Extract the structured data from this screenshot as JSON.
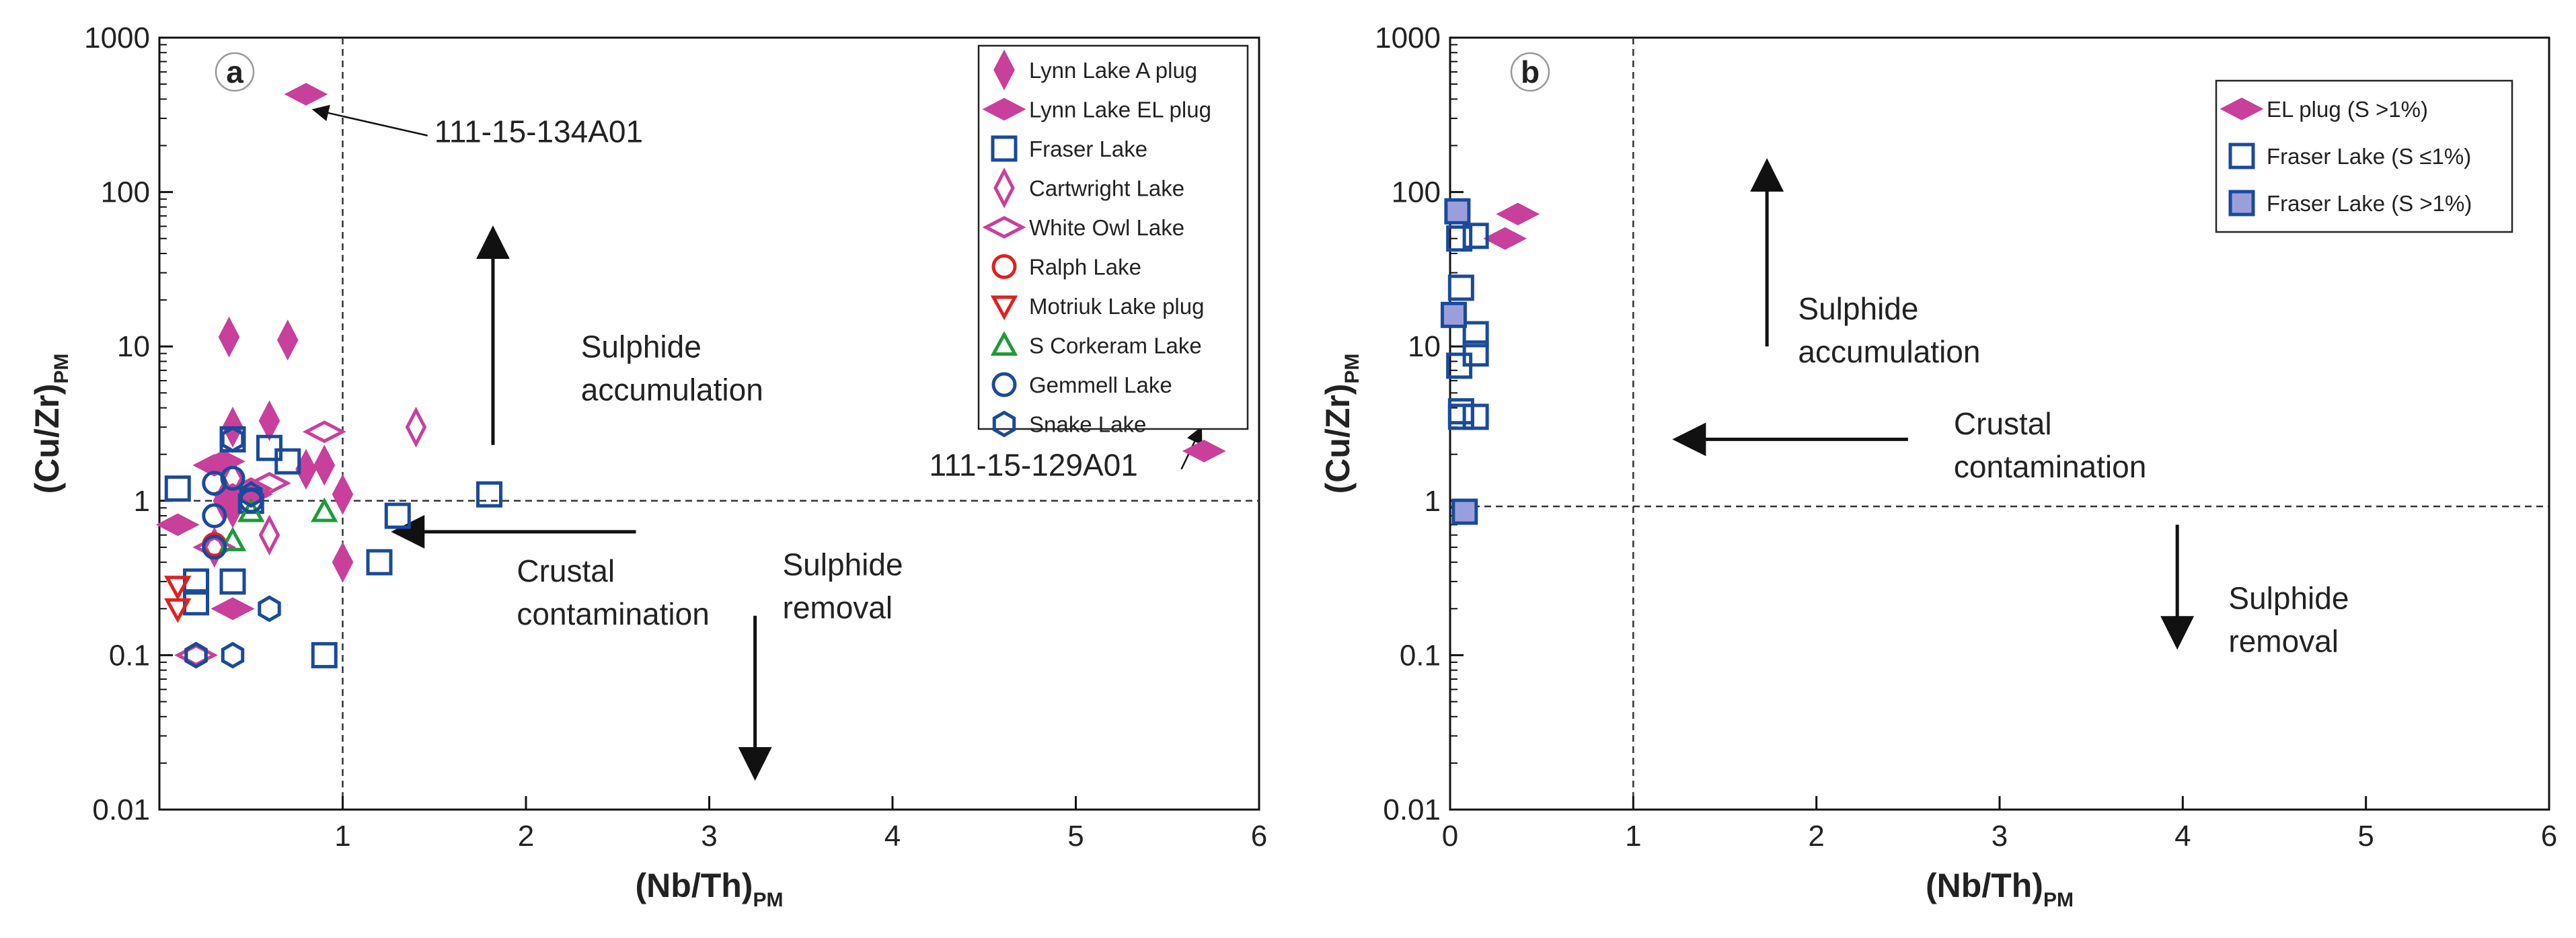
{
  "chart_data": [
    {
      "type": "scatter",
      "panel_label": "a",
      "xlabel": "(Nb/Th)",
      "xlabel_sub": "PM",
      "ylabel": "(Cu/Zr)",
      "ylabel_sub": "PM",
      "xlim": [
        0,
        6
      ],
      "ylim": [
        0.01,
        1000
      ],
      "y_scale": "log",
      "x_ticks": [
        1,
        2,
        3,
        4,
        5,
        6
      ],
      "y_ticks": [
        0.01,
        0.1,
        1,
        10,
        100,
        1000
      ],
      "x_tick_labels": [
        "1",
        "2",
        "3",
        "4",
        "5",
        "6"
      ],
      "y_tick_labels": [
        "0.01",
        "0.1",
        "1",
        "10",
        "100",
        "1000"
      ],
      "reference_lines": {
        "x": 1,
        "y": 1
      },
      "legend_position": "top-right",
      "series": [
        {
          "name": "Lynn Lake A plug",
          "marker": "diamond-narrow",
          "color": "#c8409b",
          "filled": true,
          "x": [
            0.38,
            0.7,
            0.4,
            0.6,
            0.8,
            0.9,
            1.0,
            0.35,
            0.4,
            1.0
          ],
          "y": [
            11.5,
            11,
            3.0,
            3.3,
            1.6,
            1.7,
            1.1,
            1.0,
            0.9,
            0.4
          ]
        },
        {
          "name": "Lynn Lake EL plug",
          "marker": "diamond-wide",
          "color": "#c8409b",
          "filled": true,
          "x": [
            0.8,
            0.3,
            0.35,
            0.4,
            0.5,
            0.1,
            0.4,
            0.4,
            5.7
          ],
          "y": [
            430,
            1.7,
            1.8,
            1.1,
            1.1,
            0.7,
            0.2,
            0.2,
            2.1
          ]
        },
        {
          "name": "Fraser Lake",
          "marker": "square",
          "color": "#1a4a9a",
          "filled": false,
          "x": [
            0.1,
            0.4,
            0.6,
            0.7,
            0.5,
            0.2,
            0.4,
            1.3,
            1.8,
            1.2,
            0.9,
            0.2
          ],
          "y": [
            1.2,
            2.5,
            2.2,
            1.8,
            1.0,
            0.3,
            0.3,
            0.8,
            1.1,
            0.4,
            0.1,
            0.22
          ]
        },
        {
          "name": "Cartwright Lake",
          "marker": "diamond-narrow",
          "color": "#c8409b",
          "filled": false,
          "x": [
            1.4,
            0.9,
            0.6,
            0.3,
            0.4
          ],
          "y": [
            3.0,
            1.7,
            0.6,
            0.5,
            1.4
          ]
        },
        {
          "name": "White Owl Lake",
          "marker": "diamond-wide",
          "color": "#c8409b",
          "filled": false,
          "x": [
            0.9,
            0.5,
            0.6,
            0.2,
            0.3
          ],
          "y": [
            2.8,
            1.2,
            1.3,
            0.1,
            0.5
          ]
        },
        {
          "name": "Ralph Lake",
          "marker": "circle",
          "color": "#e02020",
          "filled": false,
          "x": [
            0.3
          ],
          "y": [
            0.52
          ]
        },
        {
          "name": "Motriuk Lake plug",
          "marker": "triangle-down",
          "color": "#e02020",
          "filled": false,
          "x": [
            0.1,
            0.1
          ],
          "y": [
            0.28,
            0.2
          ]
        },
        {
          "name": "S Corkeram Lake",
          "marker": "triangle-up",
          "color": "#1f9a3a",
          "filled": false,
          "x": [
            0.9,
            0.5,
            0.4
          ],
          "y": [
            0.85,
            0.85,
            0.55
          ]
        },
        {
          "name": "Gemmell Lake",
          "marker": "circle",
          "color": "#1a4a9a",
          "filled": false,
          "x": [
            0.3,
            0.4,
            0.5,
            0.3,
            0.3
          ],
          "y": [
            1.3,
            1.4,
            1.0,
            0.8,
            0.5
          ]
        },
        {
          "name": "Snake Lake",
          "marker": "hexagon",
          "color": "#1a4a9a",
          "filled": false,
          "x": [
            0.4,
            0.5,
            0.6,
            0.2,
            0.4,
            0.2
          ],
          "y": [
            2.5,
            1.1,
            0.2,
            0.1,
            0.1,
            0.1
          ]
        }
      ],
      "annotations": [
        {
          "text": "111-15-134A01",
          "text_x": 1.5,
          "text_y": 210,
          "arrow_to": [
            0.85,
            340
          ]
        },
        {
          "text": "111-15-129A01",
          "text_x": 4.2,
          "text_y": 1.45,
          "arrow_to": [
            5.68,
            2.9
          ]
        },
        {
          "text_lines": [
            "Sulphide",
            "accumulation"
          ],
          "text_x": 2.3,
          "text_y": 8.5,
          "arrow_from": [
            1.82,
            2.3
          ],
          "arrow_to": [
            1.82,
            55
          ]
        },
        {
          "text_lines": [
            "Crustal",
            "contamination"
          ],
          "text_x": 1.95,
          "text_y": 0.3,
          "arrow_from": [
            2.6,
            0.63
          ],
          "arrow_to": [
            1.3,
            0.63
          ]
        },
        {
          "text_lines": [
            "Sulphide",
            "removal"
          ],
          "text_x": 3.4,
          "text_y": 0.33,
          "arrow_from": [
            3.25,
            0.18
          ],
          "arrow_to": [
            3.25,
            0.017
          ]
        }
      ]
    },
    {
      "type": "scatter",
      "panel_label": "b",
      "xlabel": "(Nb/Th)",
      "xlabel_sub": "PM",
      "ylabel": "(Cu/Zr)",
      "ylabel_sub": "PM",
      "xlim": [
        0,
        6
      ],
      "ylim": [
        0.01,
        1000
      ],
      "y_scale": "log",
      "x_ticks": [
        0,
        1,
        2,
        3,
        4,
        5,
        6
      ],
      "y_ticks": [
        0.01,
        0.1,
        1,
        10,
        100,
        1000
      ],
      "x_tick_labels": [
        "0",
        "1",
        "2",
        "3",
        "4",
        "5",
        "6"
      ],
      "y_tick_labels": [
        "0.01",
        "0.1",
        "1",
        "10",
        "100",
        "1000"
      ],
      "reference_lines": {
        "x": 1,
        "y": 0.92
      },
      "legend_position": "top-right",
      "series": [
        {
          "name": "EL plug (S >1%)",
          "marker": "diamond-wide",
          "color": "#c8409b",
          "filled": true,
          "x": [
            0.37,
            0.3
          ],
          "y": [
            72,
            50
          ]
        },
        {
          "name": "Fraser Lake (S ≤1%)",
          "marker": "square",
          "color": "#1a4a9a",
          "filled": false,
          "x": [
            0.05,
            0.14,
            0.06,
            0.14,
            0.14,
            0.05,
            0.06,
            0.14,
            0.06
          ],
          "y": [
            50,
            52,
            24,
            12,
            9,
            7.5,
            3.8,
            3.5,
            3.5
          ]
        },
        {
          "name": "Fraser Lake (S >1%)",
          "marker": "square",
          "color": "#1a4a9a",
          "filled": true,
          "fill": "#9a9fdc",
          "x": [
            0.04,
            0.02,
            0.08
          ],
          "y": [
            75,
            16,
            0.85
          ]
        }
      ],
      "annotations": [
        {
          "text_lines": [
            "Sulphide",
            "accumulation"
          ],
          "text_x": 1.9,
          "text_y": 15,
          "arrow_from": [
            1.73,
            10
          ],
          "arrow_to": [
            1.73,
            150
          ]
        },
        {
          "text_lines": [
            "Crustal",
            "contamination"
          ],
          "text_x": 2.75,
          "text_y": 2.7,
          "arrow_from": [
            2.5,
            2.5
          ],
          "arrow_to": [
            1.25,
            2.5
          ]
        },
        {
          "text_lines": [
            "Sulphide",
            "removal"
          ],
          "text_x": 4.25,
          "text_y": 0.2,
          "arrow_from": [
            3.97,
            0.7
          ],
          "arrow_to": [
            3.97,
            0.12
          ]
        }
      ]
    }
  ]
}
